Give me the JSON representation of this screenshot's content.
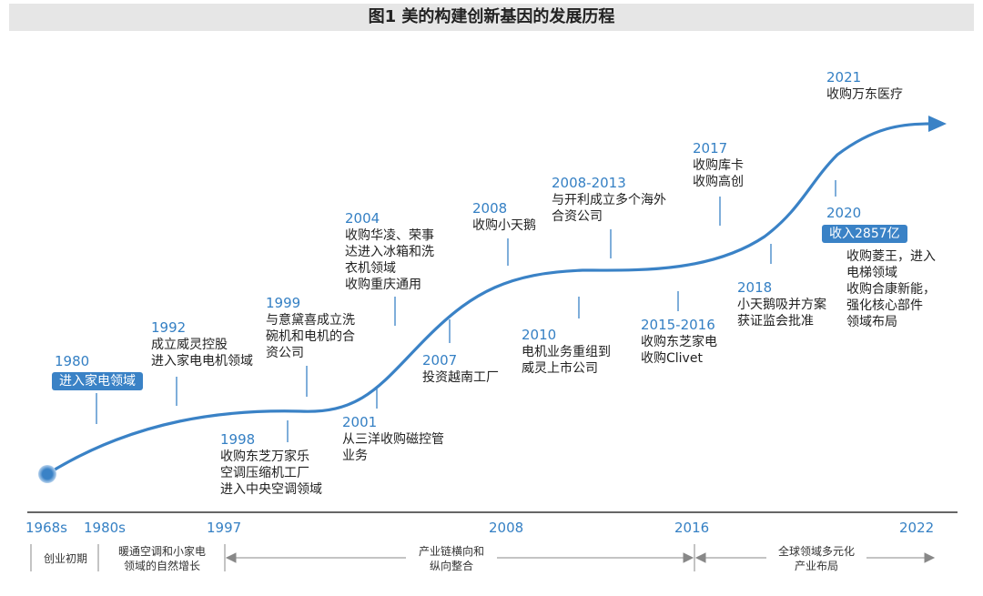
{
  "title": "图1  美的构建创新基因的发展历程",
  "events": {
    "e1980": {
      "year": "1980",
      "badge": "进入家电领域"
    },
    "e1992": {
      "year": "1992",
      "lines": [
        "成立威灵控股",
        "进入家电电机领域"
      ]
    },
    "e1998": {
      "year": "1998",
      "lines": [
        "收购东芝万家乐",
        "空调压缩机工厂",
        "进入中央空调领域"
      ]
    },
    "e1999": {
      "year": "1999",
      "lines": [
        "与意黛喜成立洗",
        "碗机和电机的合",
        "资公司"
      ]
    },
    "e2001": {
      "year": "2001",
      "lines": [
        "从三洋收购磁控管",
        "业务"
      ]
    },
    "e2004": {
      "year": "2004",
      "lines": [
        "收购华凌、荣事",
        "达进入冰箱和洗",
        "衣机领域",
        "收购重庆通用"
      ]
    },
    "e2007": {
      "year": "2007",
      "lines": [
        "投资越南工厂"
      ]
    },
    "e2008": {
      "year": "2008",
      "lines": [
        "收购小天鹅"
      ]
    },
    "e2010": {
      "year": "2010",
      "lines": [
        "电机业务重组到",
        "威灵上市公司"
      ]
    },
    "e2008_2013": {
      "year": "2008-2013",
      "lines": [
        "与开利成立多个海外",
        "合资公司"
      ]
    },
    "e2015_2016": {
      "year": "2015-2016",
      "lines": [
        "收购东芝家电",
        "收购Clivet"
      ]
    },
    "e2017": {
      "year": "2017",
      "lines": [
        "收购库卡",
        "收购高创"
      ]
    },
    "e2018": {
      "year": "2018",
      "lines": [
        "小天鹅吸并方案",
        "获证监会批准"
      ]
    },
    "e2020": {
      "year": "2020",
      "badge": "收入2857亿",
      "lines": [
        "收购菱王，进入",
        "电梯领域",
        "收购合康新能，",
        "强化核心部件",
        "领域布局"
      ]
    },
    "e2021": {
      "year": "2021",
      "lines": [
        "收购万东医疗"
      ]
    }
  },
  "axis_ticks": [
    "1968s",
    "1980s",
    "1997",
    "2008",
    "2016",
    "2022"
  ],
  "phases": [
    {
      "lines": [
        "创业初期"
      ]
    },
    {
      "lines": [
        "暖通空调和小家电",
        "领域的自然增长"
      ]
    },
    {
      "lines": [
        "产业链横向和",
        "纵向整合"
      ]
    },
    {
      "lines": [
        "全球领域多元化",
        "产业布局"
      ]
    }
  ],
  "colors": {
    "accent": "#3580c4",
    "curve": "#3a82c6",
    "title_bg": "#e6e6e6"
  }
}
